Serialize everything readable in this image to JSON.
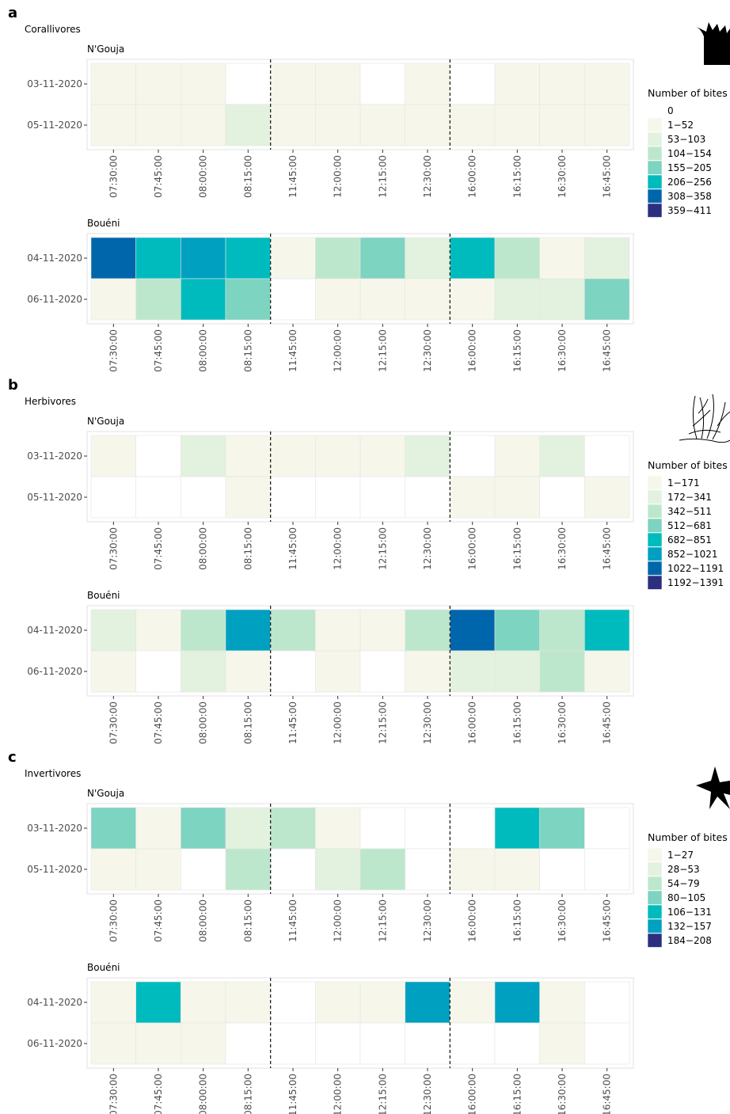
{
  "colors": {
    "level_0": "#ffffff",
    "level_1": "#f6f7ea",
    "level_2": "#e2f2de",
    "level_3": "#bde7cc",
    "level_4": "#7dd4c0",
    "level_5": "#00bbbd",
    "level_6": "#00a0c0",
    "level_7": "#0066ac",
    "level_8": "#2c2f7f",
    "grid": "#e5e5e5",
    "axis_text": "#4d4d4d",
    "separator": "#222222"
  },
  "chart_data": [
    {
      "type": "heatmap",
      "panel_letter": "a",
      "group_title": "Corallivores",
      "icon": "coral-silhouette-icon",
      "legend": {
        "title": "Number of bites",
        "classes": [
          {
            "label": "0",
            "color": "#ffffff"
          },
          {
            "label": "1−52",
            "color": "#f6f7ea"
          },
          {
            "label": "53−103",
            "color": "#e2f2de"
          },
          {
            "label": "104−154",
            "color": "#bde7cc"
          },
          {
            "label": "155−205",
            "color": "#7dd4c0"
          },
          {
            "label": "206−256",
            "color": "#00bbbd"
          },
          {
            "label": "308−358",
            "color": "#0066ac"
          },
          {
            "label": "359−411",
            "color": "#2c2f7f"
          }
        ]
      },
      "x": [
        "07:30:00",
        "07:45:00",
        "08:00:00",
        "08:15:00",
        "11:45:00",
        "12:00:00",
        "12:15:00",
        "12:30:00",
        "16:00:00",
        "16:15:00",
        "16:30:00",
        "16:45:00"
      ],
      "separators_after_index": [
        3,
        7
      ],
      "sites": [
        {
          "name": "N'Gouja",
          "rows": [
            {
              "date": "03-11-2020",
              "classes": [
                1,
                1,
                1,
                0,
                1,
                1,
                0,
                1,
                0,
                1,
                1,
                1
              ]
            },
            {
              "date": "05-11-2020",
              "classes": [
                1,
                1,
                1,
                2,
                1,
                1,
                1,
                1,
                1,
                1,
                1,
                1
              ]
            }
          ]
        },
        {
          "name": "Bouéni",
          "rows": [
            {
              "date": "04-11-2020",
              "classes": [
                7,
                5,
                6,
                5,
                1,
                3,
                4,
                2,
                5,
                3,
                1,
                2
              ]
            },
            {
              "date": "06-11-2020",
              "classes": [
                1,
                3,
                5,
                4,
                0,
                1,
                1,
                1,
                1,
                2,
                2,
                4
              ]
            }
          ]
        }
      ]
    },
    {
      "type": "heatmap",
      "panel_letter": "b",
      "group_title": "Herbivores",
      "icon": "seaweed-outline-icon",
      "legend": {
        "title": "Number of bites",
        "classes": [
          {
            "label": "1−171",
            "color": "#f6f7ea"
          },
          {
            "label": "172−341",
            "color": "#e2f2de"
          },
          {
            "label": "342−511",
            "color": "#bde7cc"
          },
          {
            "label": "512−681",
            "color": "#7dd4c0"
          },
          {
            "label": "682−851",
            "color": "#00bbbd"
          },
          {
            "label": "852−1021",
            "color": "#00a0c0"
          },
          {
            "label": "1022−1191",
            "color": "#0066ac"
          },
          {
            "label": "1192−1391",
            "color": "#2c2f7f"
          }
        ]
      },
      "x": [
        "07:30:00",
        "07:45:00",
        "08:00:00",
        "08:15:00",
        "11:45:00",
        "12:00:00",
        "12:15:00",
        "12:30:00",
        "16:00:00",
        "16:15:00",
        "16:30:00",
        "16:45:00"
      ],
      "separators_after_index": [
        3,
        7
      ],
      "sites": [
        {
          "name": "N'Gouja",
          "rows": [
            {
              "date": "03-11-2020",
              "classes": [
                1,
                0,
                2,
                1,
                1,
                1,
                1,
                2,
                0,
                1,
                2,
                0
              ]
            },
            {
              "date": "05-11-2020",
              "classes": [
                0,
                0,
                0,
                1,
                0,
                0,
                0,
                0,
                1,
                1,
                0,
                1
              ]
            }
          ]
        },
        {
          "name": "Bouéni",
          "rows": [
            {
              "date": "04-11-2020",
              "classes": [
                2,
                1,
                3,
                6,
                3,
                1,
                1,
                3,
                7,
                4,
                3,
                5
              ]
            },
            {
              "date": "06-11-2020",
              "classes": [
                1,
                0,
                2,
                1,
                0,
                1,
                0,
                1,
                2,
                2,
                3,
                1
              ]
            }
          ]
        }
      ]
    },
    {
      "type": "heatmap",
      "panel_letter": "c",
      "group_title": "Invertivores",
      "icon": "starfish-silhouette-icon",
      "legend": {
        "title": "Number of bites",
        "classes": [
          {
            "label": "1−27",
            "color": "#f6f7ea"
          },
          {
            "label": "28−53",
            "color": "#e2f2de"
          },
          {
            "label": "54−79",
            "color": "#bde7cc"
          },
          {
            "label": "80−105",
            "color": "#7dd4c0"
          },
          {
            "label": "106−131",
            "color": "#00bbbd"
          },
          {
            "label": "132−157",
            "color": "#00a0c0"
          },
          {
            "label": "184−208",
            "color": "#2c2f7f"
          }
        ]
      },
      "x": [
        "07:30:00",
        "07:45:00",
        "08:00:00",
        "08:15:00",
        "11:45:00",
        "12:00:00",
        "12:15:00",
        "12:30:00",
        "16:00:00",
        "16:15:00",
        "16:30:00",
        "16:45:00"
      ],
      "separators_after_index": [
        3,
        7
      ],
      "sites": [
        {
          "name": "N'Gouja",
          "rows": [
            {
              "date": "03-11-2020",
              "classes": [
                4,
                1,
                4,
                2,
                3,
                1,
                0,
                0,
                0,
                5,
                4,
                0
              ]
            },
            {
              "date": "05-11-2020",
              "classes": [
                1,
                1,
                0,
                3,
                0,
                2,
                3,
                0,
                1,
                1,
                0,
                0
              ]
            }
          ]
        },
        {
          "name": "Bouéni",
          "rows": [
            {
              "date": "04-11-2020",
              "classes": [
                1,
                5,
                1,
                1,
                0,
                1,
                1,
                6,
                1,
                6,
                1,
                0
              ]
            },
            {
              "date": "06-11-2020",
              "classes": [
                1,
                1,
                1,
                0,
                0,
                0,
                0,
                0,
                0,
                0,
                1,
                0
              ]
            }
          ]
        }
      ]
    }
  ]
}
